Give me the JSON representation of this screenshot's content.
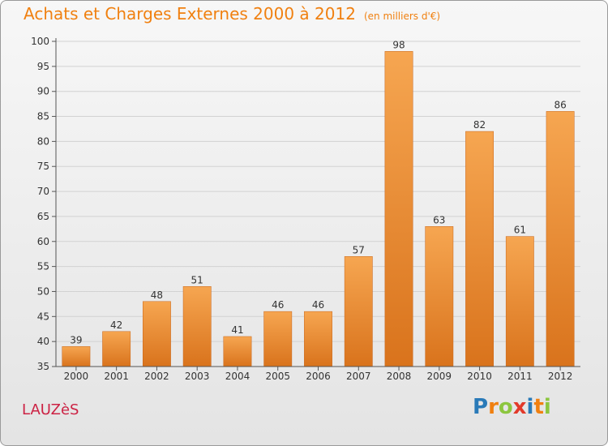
{
  "title": "Achats et Charges Externes 2000 à 2012",
  "unit": "(en milliers d'€)",
  "commune": "LAUZèS",
  "logo": {
    "text": "Proxiti",
    "letter_colors": [
      "#2a7ab8",
      "#f08010",
      "#8cc63f",
      "#e23a2a",
      "#2a7ab8",
      "#f08010",
      "#8cc63f"
    ]
  },
  "colors": {
    "bar_light": "#f6a651",
    "bar_dark": "#d9731c",
    "title": "#f08010",
    "commune": "#cc2244"
  },
  "chart_data": {
    "type": "bar",
    "categories": [
      "2000",
      "2001",
      "2002",
      "2003",
      "2004",
      "2005",
      "2006",
      "2007",
      "2008",
      "2009",
      "2010",
      "2011",
      "2012"
    ],
    "values": [
      39,
      42,
      48,
      51,
      41,
      46,
      46,
      57,
      98,
      63,
      82,
      61,
      86
    ],
    "ylim": [
      35,
      100
    ],
    "yticks": [
      35,
      40,
      45,
      50,
      55,
      60,
      65,
      70,
      75,
      80,
      85,
      90,
      95,
      100
    ],
    "grid": true
  }
}
